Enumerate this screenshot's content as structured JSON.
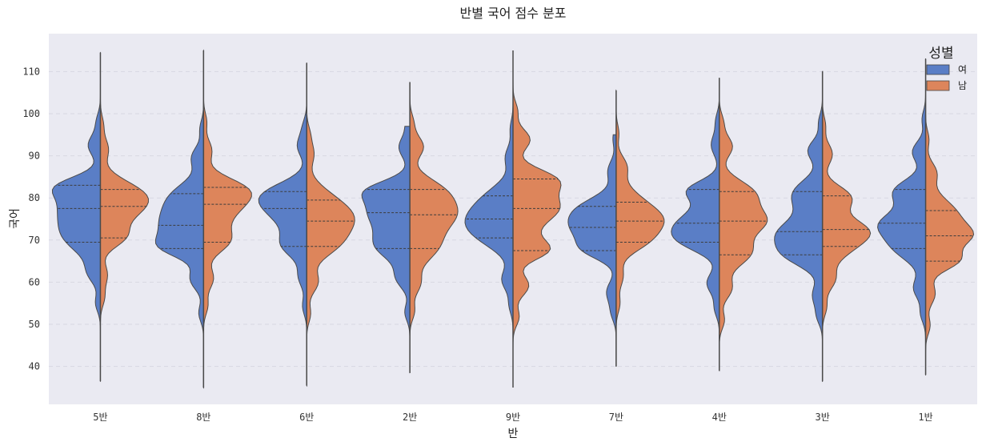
{
  "chart_data": {
    "type": "violin",
    "title": "반별 국어 점수 분포",
    "xlabel": "반",
    "ylabel": "국어",
    "ylim": [
      31,
      119
    ],
    "yticks": [
      40,
      50,
      60,
      70,
      80,
      90,
      100,
      110
    ],
    "grid": true,
    "legend": {
      "title": "성별",
      "placement": "top-right",
      "entries": [
        "여",
        "남"
      ]
    },
    "categories": [
      "5반",
      "8반",
      "6반",
      "2반",
      "9반",
      "7반",
      "4반",
      "3반",
      "1반"
    ],
    "series": [
      {
        "name": "여",
        "color": "#5a7ec6",
        "range": [
          [
            36.5,
            107
          ],
          [
            35,
            110
          ],
          [
            35.5,
            112
          ],
          [
            38.5,
            97
          ],
          [
            35,
            115
          ],
          [
            40,
            95
          ],
          [
            39,
            105
          ],
          [
            36.5,
            110
          ],
          [
            38,
            113
          ]
        ],
        "quartiles": [
          [
            69.5,
            77.5,
            83
          ],
          [
            68,
            73.5,
            81
          ],
          [
            68.5,
            77.5,
            81.5
          ],
          [
            68,
            76.5,
            82
          ],
          [
            70.5,
            75,
            80.5
          ],
          [
            67.5,
            73,
            78
          ],
          [
            69.5,
            74,
            82
          ],
          [
            66.5,
            72,
            81.5
          ],
          [
            68,
            74,
            82
          ]
        ]
      },
      {
        "name": "남",
        "color": "#dd855b",
        "range": [
          [
            36.5,
            114.5
          ],
          [
            35,
            115
          ],
          [
            35.5,
            112
          ],
          [
            38.5,
            107.5
          ],
          [
            35,
            115
          ],
          [
            40,
            105.5
          ],
          [
            39,
            108.5
          ],
          [
            36.5,
            110
          ],
          [
            38,
            113
          ]
        ],
        "quartiles": [
          [
            70.5,
            78,
            82
          ],
          [
            69.5,
            78.5,
            82.5
          ],
          [
            68.5,
            74.5,
            79.5
          ],
          [
            68,
            76,
            82
          ],
          [
            67.5,
            77.5,
            84.5
          ],
          [
            69.5,
            74.5,
            79
          ],
          [
            66.5,
            74.5,
            81.5
          ],
          [
            68.5,
            72.5,
            80.5
          ],
          [
            65,
            71,
            77
          ]
        ]
      }
    ]
  }
}
